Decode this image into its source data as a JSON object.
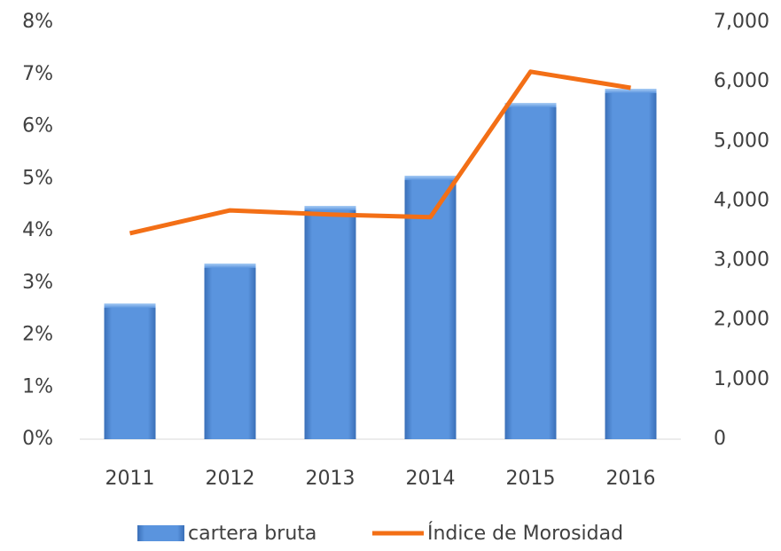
{
  "chart_data": {
    "type": "bar_line",
    "categories": [
      "2011",
      "2012",
      "2013",
      "2014",
      "2015",
      "2016"
    ],
    "series": [
      {
        "name": "cartera bruta",
        "type": "bar",
        "axis": "y2",
        "color": "#4a85d6",
        "values": [
          2279,
          2949,
          3917,
          4423,
          5645,
          5883
        ]
      },
      {
        "name": "Índice de Morosidad",
        "type": "line",
        "axis": "y",
        "color": "#f36f16",
        "values": [
          3.95,
          4.39,
          4.31,
          4.26,
          7.05,
          6.74
        ]
      }
    ],
    "ylim": [
      0,
      8
    ],
    "yticks": [
      {
        "value": 0,
        "label": "0%"
      },
      {
        "value": 1,
        "label": "1%"
      },
      {
        "value": 2,
        "label": "2%"
      },
      {
        "value": 3,
        "label": "3%"
      },
      {
        "value": 4,
        "label": "4%"
      },
      {
        "value": 5,
        "label": "5%"
      },
      {
        "value": 6,
        "label": "6%"
      },
      {
        "value": 7,
        "label": "7%"
      },
      {
        "value": 8,
        "label": "8%"
      }
    ],
    "y2lim": [
      0,
      7000
    ],
    "y2ticks": [
      0,
      {
        "value": 1000,
        "label": "1,000"
      },
      {
        "value": 2000,
        "label": "2,000"
      },
      {
        "value": 3000,
        "label": "3,000"
      },
      {
        "value": 4000,
        "label": "4,000"
      },
      {
        "value": 5000,
        "label": "5,000"
      },
      {
        "value": 6000,
        "label": "6,000"
      },
      {
        "value": 7000,
        "label": "7,000"
      }
    ],
    "legend": "bottom"
  }
}
